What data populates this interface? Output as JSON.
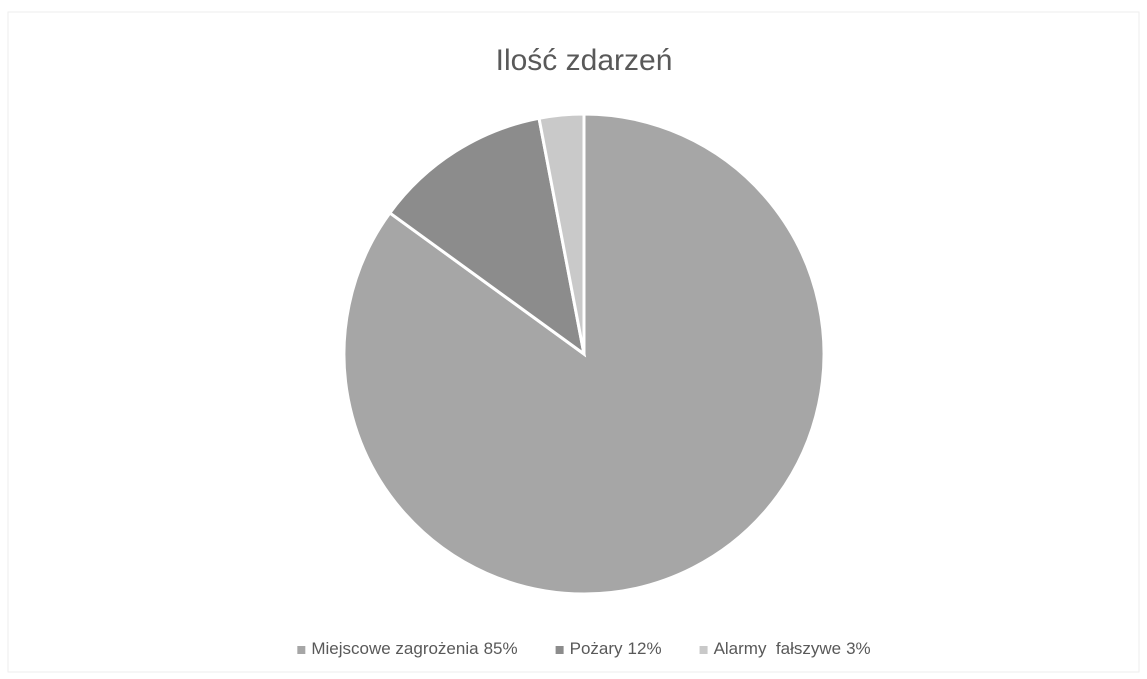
{
  "chart_data": {
    "type": "pie",
    "title": "Ilość zdarzeń",
    "categories": [
      "Miejscowe zagrożenia",
      "Pożary",
      "Alarmy  fałszywe"
    ],
    "values": [
      85,
      12,
      3
    ],
    "value_labels": [
      "85%",
      "12%",
      "3%"
    ],
    "colors": [
      "#a6a6a6",
      "#8c8c8c",
      "#c9c9c9"
    ],
    "legend": "bottom"
  }
}
